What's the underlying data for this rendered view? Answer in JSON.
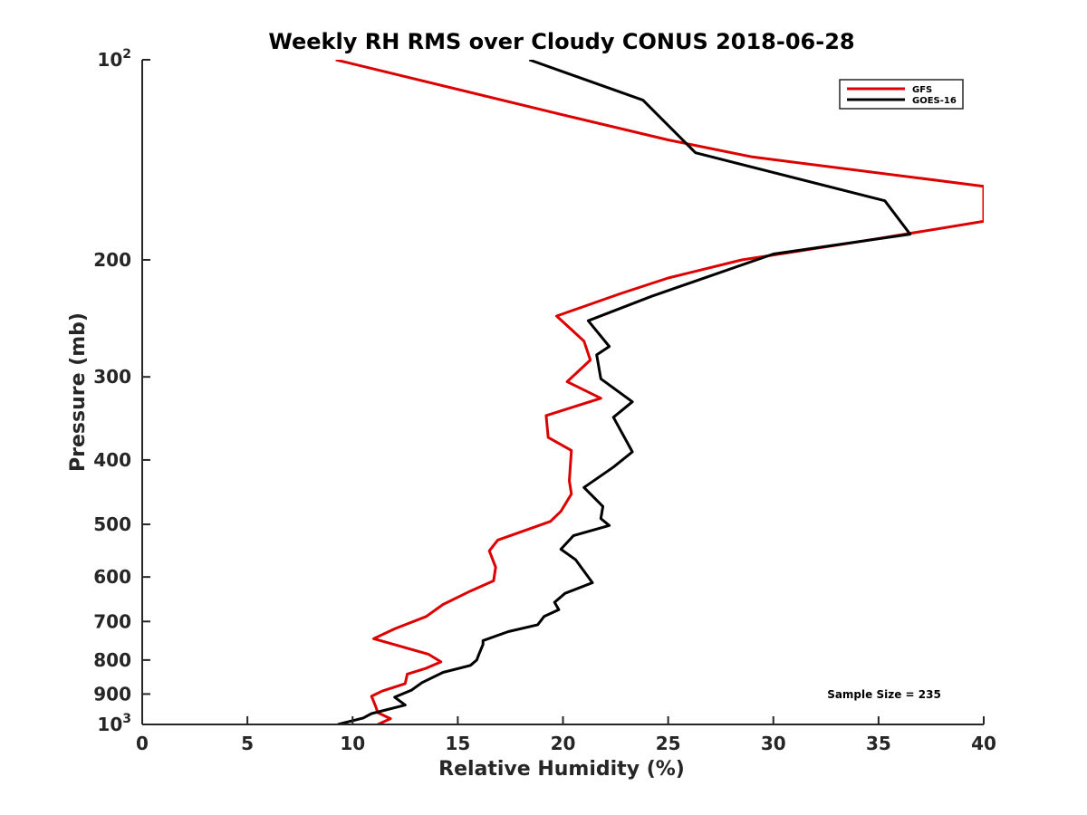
{
  "chart_data": {
    "type": "line",
    "title": "Weekly RH RMS over Cloudy CONUS 2018-06-28",
    "xlabel": "Relative Humidity (%)",
    "ylabel": "Pressure (mb)",
    "xlim": [
      0,
      40
    ],
    "ylim": [
      100,
      1000
    ],
    "yscale": "log",
    "y_reversed": true,
    "x_ticks": [
      "0",
      "5",
      "10",
      "15",
      "20",
      "25",
      "30",
      "35",
      "40"
    ],
    "y_ticks": [
      {
        "value": 100,
        "base": "10",
        "exp": "2"
      },
      {
        "value": 200,
        "label": "200"
      },
      {
        "value": 300,
        "label": "300"
      },
      {
        "value": 400,
        "label": "400"
      },
      {
        "value": 500,
        "label": "500"
      },
      {
        "value": 600,
        "label": "600"
      },
      {
        "value": 700,
        "label": "700"
      },
      {
        "value": 800,
        "label": "800"
      },
      {
        "value": 900,
        "label": "900"
      },
      {
        "value": 1000,
        "base": "10",
        "exp": "3"
      }
    ],
    "grid": false,
    "legend_position": "top-right",
    "annotation": "Sample Size = 235",
    "series": [
      {
        "name": "GFS",
        "color": "#dd0000",
        "points": [
          {
            "x": 9.2,
            "y": 100
          },
          {
            "x": 19.5,
            "y": 120
          },
          {
            "x": 25.0,
            "y": 132
          },
          {
            "x": 29.0,
            "y": 140
          },
          {
            "x": 40.0,
            "y": 155
          },
          {
            "x": 40.0,
            "y": 175
          },
          {
            "x": 34.0,
            "y": 188
          },
          {
            "x": 28.5,
            "y": 200
          },
          {
            "x": 25.0,
            "y": 213
          },
          {
            "x": 22.7,
            "y": 225
          },
          {
            "x": 19.7,
            "y": 243
          },
          {
            "x": 21.0,
            "y": 265
          },
          {
            "x": 21.3,
            "y": 283
          },
          {
            "x": 20.2,
            "y": 305
          },
          {
            "x": 21.8,
            "y": 323
          },
          {
            "x": 19.2,
            "y": 343
          },
          {
            "x": 19.3,
            "y": 370
          },
          {
            "x": 20.4,
            "y": 387
          },
          {
            "x": 20.3,
            "y": 430
          },
          {
            "x": 20.4,
            "y": 450
          },
          {
            "x": 19.9,
            "y": 478
          },
          {
            "x": 19.4,
            "y": 495
          },
          {
            "x": 16.9,
            "y": 528
          },
          {
            "x": 16.5,
            "y": 548
          },
          {
            "x": 16.8,
            "y": 580
          },
          {
            "x": 16.7,
            "y": 608
          },
          {
            "x": 15.6,
            "y": 630
          },
          {
            "x": 14.3,
            "y": 660
          },
          {
            "x": 13.5,
            "y": 688
          },
          {
            "x": 12.0,
            "y": 718
          },
          {
            "x": 11.0,
            "y": 743
          },
          {
            "x": 13.6,
            "y": 784
          },
          {
            "x": 14.2,
            "y": 805
          },
          {
            "x": 13.5,
            "y": 823
          },
          {
            "x": 12.6,
            "y": 840
          },
          {
            "x": 12.5,
            "y": 868
          },
          {
            "x": 11.4,
            "y": 891
          },
          {
            "x": 10.9,
            "y": 907
          },
          {
            "x": 11.1,
            "y": 940
          },
          {
            "x": 11.2,
            "y": 960
          },
          {
            "x": 11.8,
            "y": 980
          },
          {
            "x": 11.2,
            "y": 1000
          }
        ]
      },
      {
        "name": "GOES-16",
        "color": "#000000",
        "points": [
          {
            "x": 18.4,
            "y": 100
          },
          {
            "x": 23.8,
            "y": 115
          },
          {
            "x": 26.3,
            "y": 138
          },
          {
            "x": 35.3,
            "y": 163
          },
          {
            "x": 36.5,
            "y": 183
          },
          {
            "x": 30.0,
            "y": 196
          },
          {
            "x": 24.2,
            "y": 227
          },
          {
            "x": 21.2,
            "y": 247
          },
          {
            "x": 22.2,
            "y": 270
          },
          {
            "x": 21.6,
            "y": 278
          },
          {
            "x": 21.8,
            "y": 302
          },
          {
            "x": 23.3,
            "y": 327
          },
          {
            "x": 22.4,
            "y": 345
          },
          {
            "x": 23.3,
            "y": 389
          },
          {
            "x": 22.4,
            "y": 410
          },
          {
            "x": 21.0,
            "y": 440
          },
          {
            "x": 21.9,
            "y": 470
          },
          {
            "x": 21.8,
            "y": 490
          },
          {
            "x": 22.2,
            "y": 502
          },
          {
            "x": 20.5,
            "y": 520
          },
          {
            "x": 19.9,
            "y": 545
          },
          {
            "x": 20.6,
            "y": 565
          },
          {
            "x": 21.4,
            "y": 612
          },
          {
            "x": 20.1,
            "y": 635
          },
          {
            "x": 19.6,
            "y": 655
          },
          {
            "x": 19.8,
            "y": 672
          },
          {
            "x": 19.1,
            "y": 688
          },
          {
            "x": 18.8,
            "y": 708
          },
          {
            "x": 17.4,
            "y": 725
          },
          {
            "x": 16.2,
            "y": 748
          },
          {
            "x": 16.2,
            "y": 758
          },
          {
            "x": 16.0,
            "y": 785
          },
          {
            "x": 15.9,
            "y": 800
          },
          {
            "x": 15.6,
            "y": 815
          },
          {
            "x": 14.3,
            "y": 835
          },
          {
            "x": 13.3,
            "y": 865
          },
          {
            "x": 12.8,
            "y": 888
          },
          {
            "x": 12.0,
            "y": 910
          },
          {
            "x": 12.5,
            "y": 935
          },
          {
            "x": 10.9,
            "y": 963
          },
          {
            "x": 10.5,
            "y": 978
          },
          {
            "x": 9.3,
            "y": 1000
          }
        ]
      }
    ]
  }
}
